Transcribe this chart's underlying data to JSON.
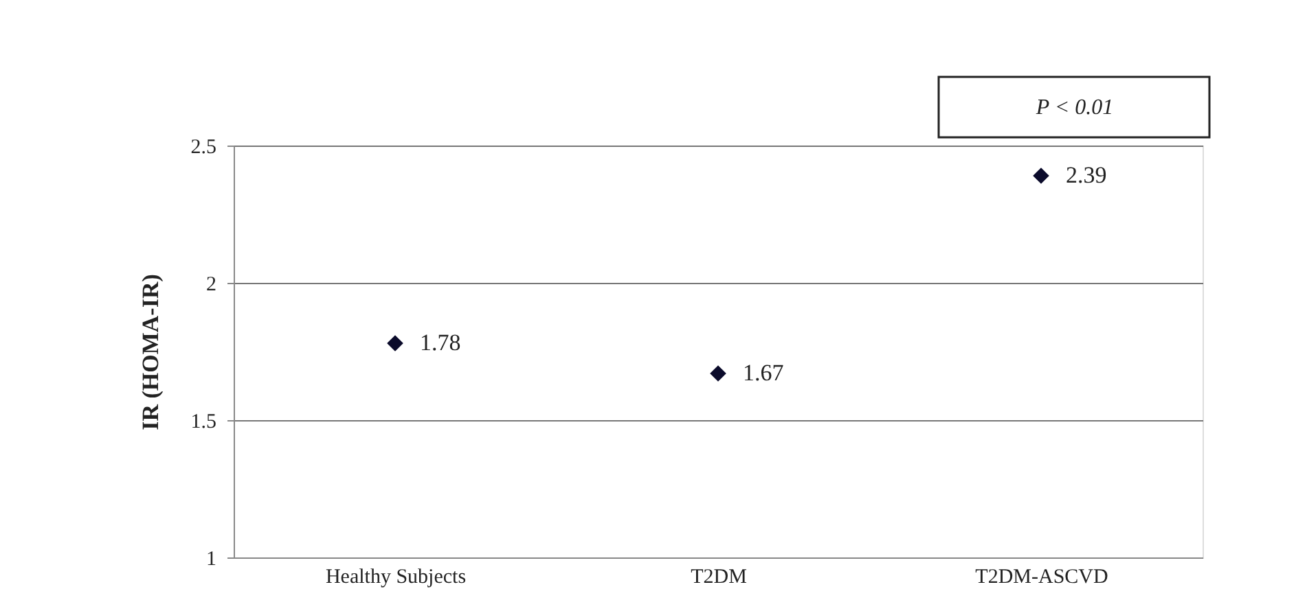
{
  "chart_data": {
    "type": "scatter",
    "ylabel": "IR (HOMA-IR)",
    "categories": [
      "Healthy Subjects",
      "T2DM",
      "T2DM-ASCVD"
    ],
    "series": [
      {
        "color": "#0b0b2b",
        "values": [
          1.78,
          1.67,
          2.39
        ]
      }
    ],
    "ylim": [
      1,
      2.5
    ],
    "yticks": [
      1,
      1.5,
      2,
      2.5
    ],
    "grid": "y",
    "marker": "diamond",
    "data_labels": true,
    "legend": false,
    "annotations": [
      "P < 0.01"
    ]
  }
}
